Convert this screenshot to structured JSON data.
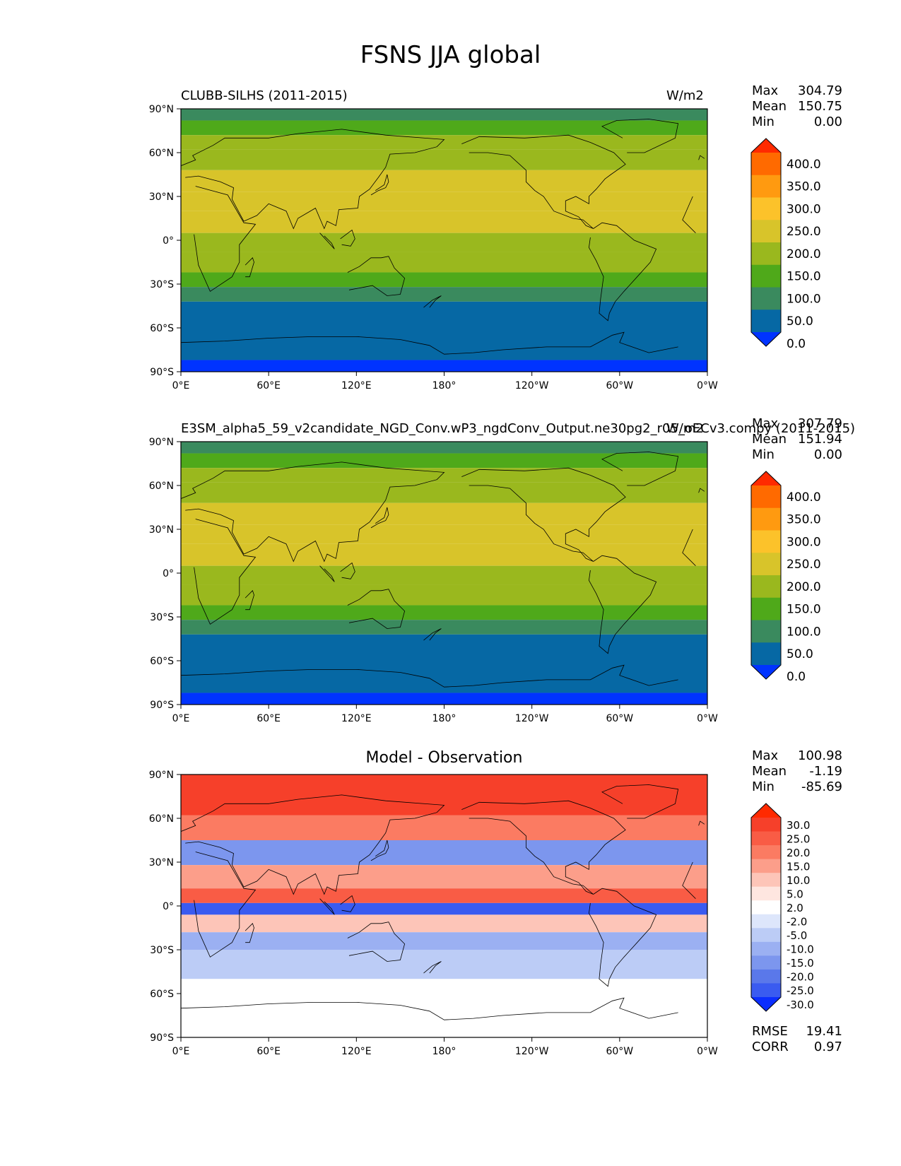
{
  "figure": {
    "title": "FSNS JJA global"
  },
  "axes": {
    "lat_labels": [
      "90°N",
      "60°N",
      "30°N",
      "0°",
      "30°S",
      "60°S",
      "90°S"
    ],
    "lon_labels": [
      "0°E",
      "60°E",
      "120°E",
      "180°",
      "120°W",
      "60°W",
      "0°W"
    ]
  },
  "panels": [
    {
      "title": "CLUBB-SILHS (2011-2015)",
      "units": "W/m2",
      "stats": [
        {
          "label": "Max",
          "value": "304.79"
        },
        {
          "label": "Mean",
          "value": "150.75"
        },
        {
          "label": "Min",
          "value": "0.00"
        }
      ],
      "colorbar": {
        "ticks": [
          "400.0",
          "350.0",
          "300.0",
          "250.0",
          "200.0",
          "150.0",
          "100.0",
          "50.0",
          "0.0"
        ],
        "colors": [
          "#ff2a00",
          "#ff6a00",
          "#ff9a10",
          "#fcc22a",
          "#d8c42a",
          "#9ab81e",
          "#4fa91a",
          "#3a8a5e",
          "#0668a4",
          "#0033ff"
        ]
      }
    },
    {
      "title": "E3SM_alpha5_59_v2candidate_NGD_Conv.wP3_ngdConv_Output.ne30pg2_r05_oECv3.compy (2011-2015)",
      "units": "W/m2",
      "stats": [
        {
          "label": "Max",
          "value": "307.79"
        },
        {
          "label": "Mean",
          "value": "151.94"
        },
        {
          "label": "Min",
          "value": "0.00"
        }
      ],
      "colorbar": {
        "ticks": [
          "400.0",
          "350.0",
          "300.0",
          "250.0",
          "200.0",
          "150.0",
          "100.0",
          "50.0",
          "0.0"
        ],
        "colors": [
          "#ff2a00",
          "#ff6a00",
          "#ff9a10",
          "#fcc22a",
          "#d8c42a",
          "#9ab81e",
          "#4fa91a",
          "#3a8a5e",
          "#0668a4",
          "#0033ff"
        ]
      }
    },
    {
      "title": "Model - Observation",
      "stats": [
        {
          "label": "Max",
          "value": "100.98"
        },
        {
          "label": "Mean",
          "value": "-1.19"
        },
        {
          "label": "Min",
          "value": "-85.69"
        }
      ],
      "extra_stats": [
        {
          "label": "RMSE",
          "value": "19.41"
        },
        {
          "label": "CORR",
          "value": "0.97"
        }
      ],
      "colorbar": {
        "ticks": [
          "30.0",
          "25.0",
          "20.0",
          "15.0",
          "10.0",
          "5.0",
          "2.0",
          "-2.0",
          "-5.0",
          "-10.0",
          "-15.0",
          "-20.0",
          "-25.0",
          "-30.0"
        ],
        "colors": [
          "#ff2a00",
          "#f6402a",
          "#f95c45",
          "#fb7b62",
          "#fc9e8a",
          "#fdc5b8",
          "#fee6e0",
          "#ffffff",
          "#dde6fb",
          "#bcccf6",
          "#9bb0f2",
          "#7c96ee",
          "#5a78ea",
          "#3a5bf0",
          "#0b2eff"
        ]
      }
    }
  ]
}
